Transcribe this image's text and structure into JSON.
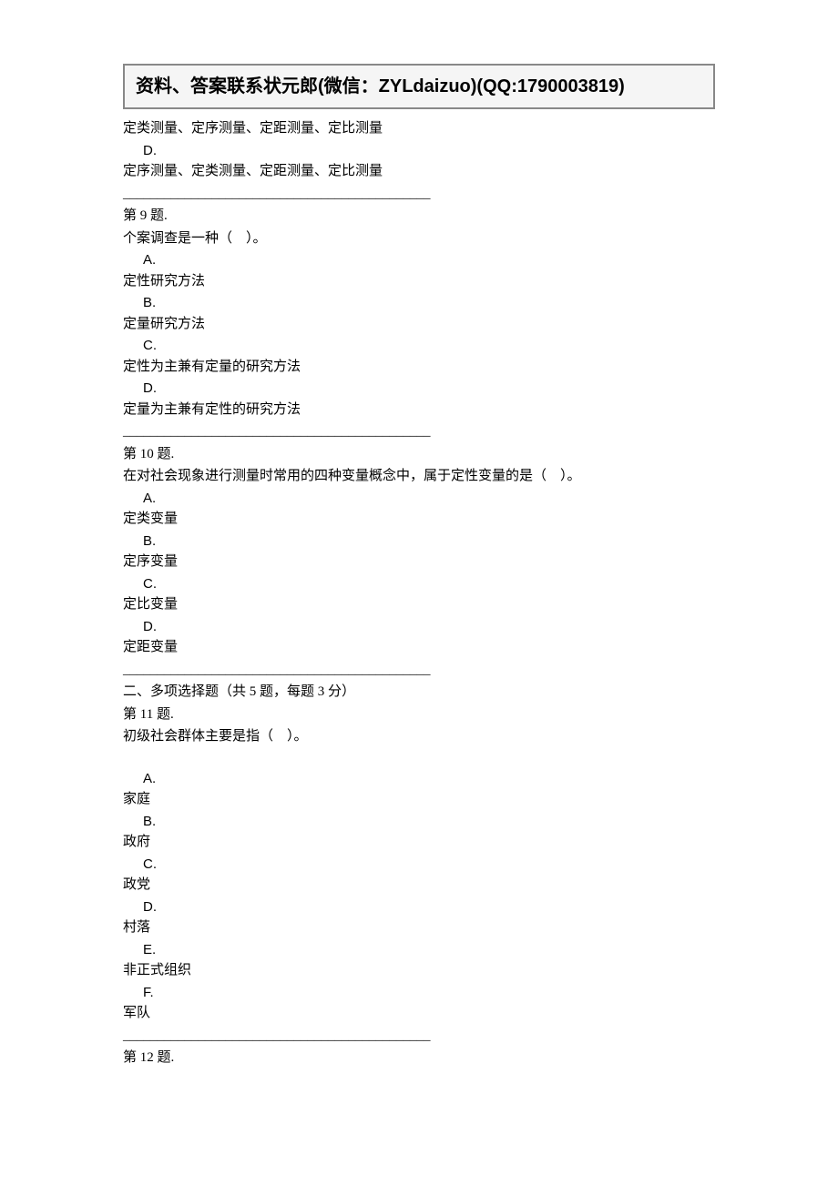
{
  "header": {
    "banner_text": "资料、答案联系状元郎(微信：ZYLdaizuo)(QQ:1790003819)"
  },
  "q8_partial": {
    "option_c_text": "定类测量、定序测量、定距测量、定比测量",
    "option_d_letter": "D.",
    "option_d_text": "定序测量、定类测量、定距测量、定比测量"
  },
  "divider_line": "_____________________________________________",
  "q9": {
    "number": "第 9 题.",
    "text": "个案调查是一种（　）。",
    "option_a_letter": "A.",
    "option_a_text": "定性研究方法",
    "option_b_letter": "B.",
    "option_b_text": "定量研究方法",
    "option_c_letter": "C.",
    "option_c_text": "定性为主兼有定量的研究方法",
    "option_d_letter": "D.",
    "option_d_text": "定量为主兼有定性的研究方法"
  },
  "q10": {
    "number": "第 10 题.",
    "text": "在对社会现象进行测量时常用的四种变量概念中，属于定性变量的是（　）。",
    "option_a_letter": "A.",
    "option_a_text": "定类变量",
    "option_b_letter": "B.",
    "option_b_text": "定序变量",
    "option_c_letter": "C.",
    "option_c_text": "定比变量",
    "option_d_letter": "D.",
    "option_d_text": "定距变量"
  },
  "section2": {
    "title": "二、多项选择题（共 5 题，每题 3 分）"
  },
  "q11": {
    "number": "第 11 题.",
    "text": "初级社会群体主要是指（　）。",
    "option_a_letter": "A.",
    "option_a_text": "家庭",
    "option_b_letter": "B.",
    "option_b_text": "政府",
    "option_c_letter": "C.",
    "option_c_text": "政党",
    "option_d_letter": "D.",
    "option_d_text": "村落",
    "option_e_letter": "E.",
    "option_e_text": "非正式组织",
    "option_f_letter": "F.",
    "option_f_text": "军队"
  },
  "q12": {
    "number": "第 12 题."
  }
}
